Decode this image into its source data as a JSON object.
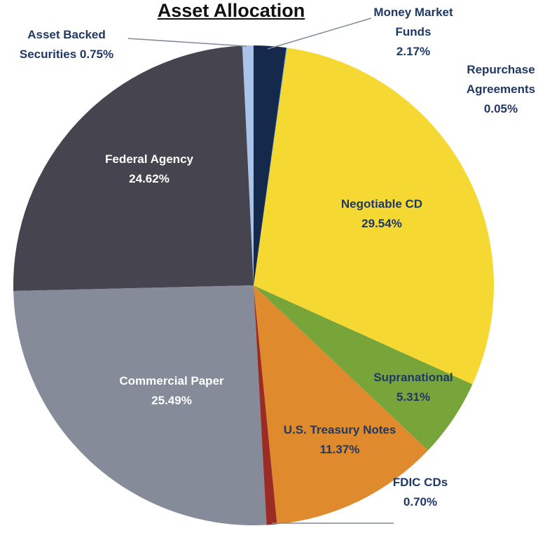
{
  "chart_data": {
    "type": "pie",
    "title": "Asset Allocation",
    "categories": [
      "Money Market Funds",
      "Repurchase Agreements",
      "Negotiable CD",
      "Supranational",
      "U.S. Treasury Notes",
      "FDIC CDs",
      "Commercial Paper",
      "Federal Agency",
      "Asset Backed Securities"
    ],
    "values": [
      2.17,
      0.05,
      29.54,
      5.31,
      11.37,
      0.7,
      25.49,
      24.62,
      0.75
    ],
    "value_labels": [
      "2.17%",
      "0.05%",
      "29.54%",
      "5.31%",
      "11.37%",
      "0.70%",
      "25.49%",
      "24.62%",
      "0.75%"
    ],
    "colors": [
      "#14294b",
      "#5b9bd5",
      "#f5d932",
      "#78a53a",
      "#e08a2e",
      "#9b2b25",
      "#858b99",
      "#46444f",
      "#a9c4e8"
    ]
  }
}
